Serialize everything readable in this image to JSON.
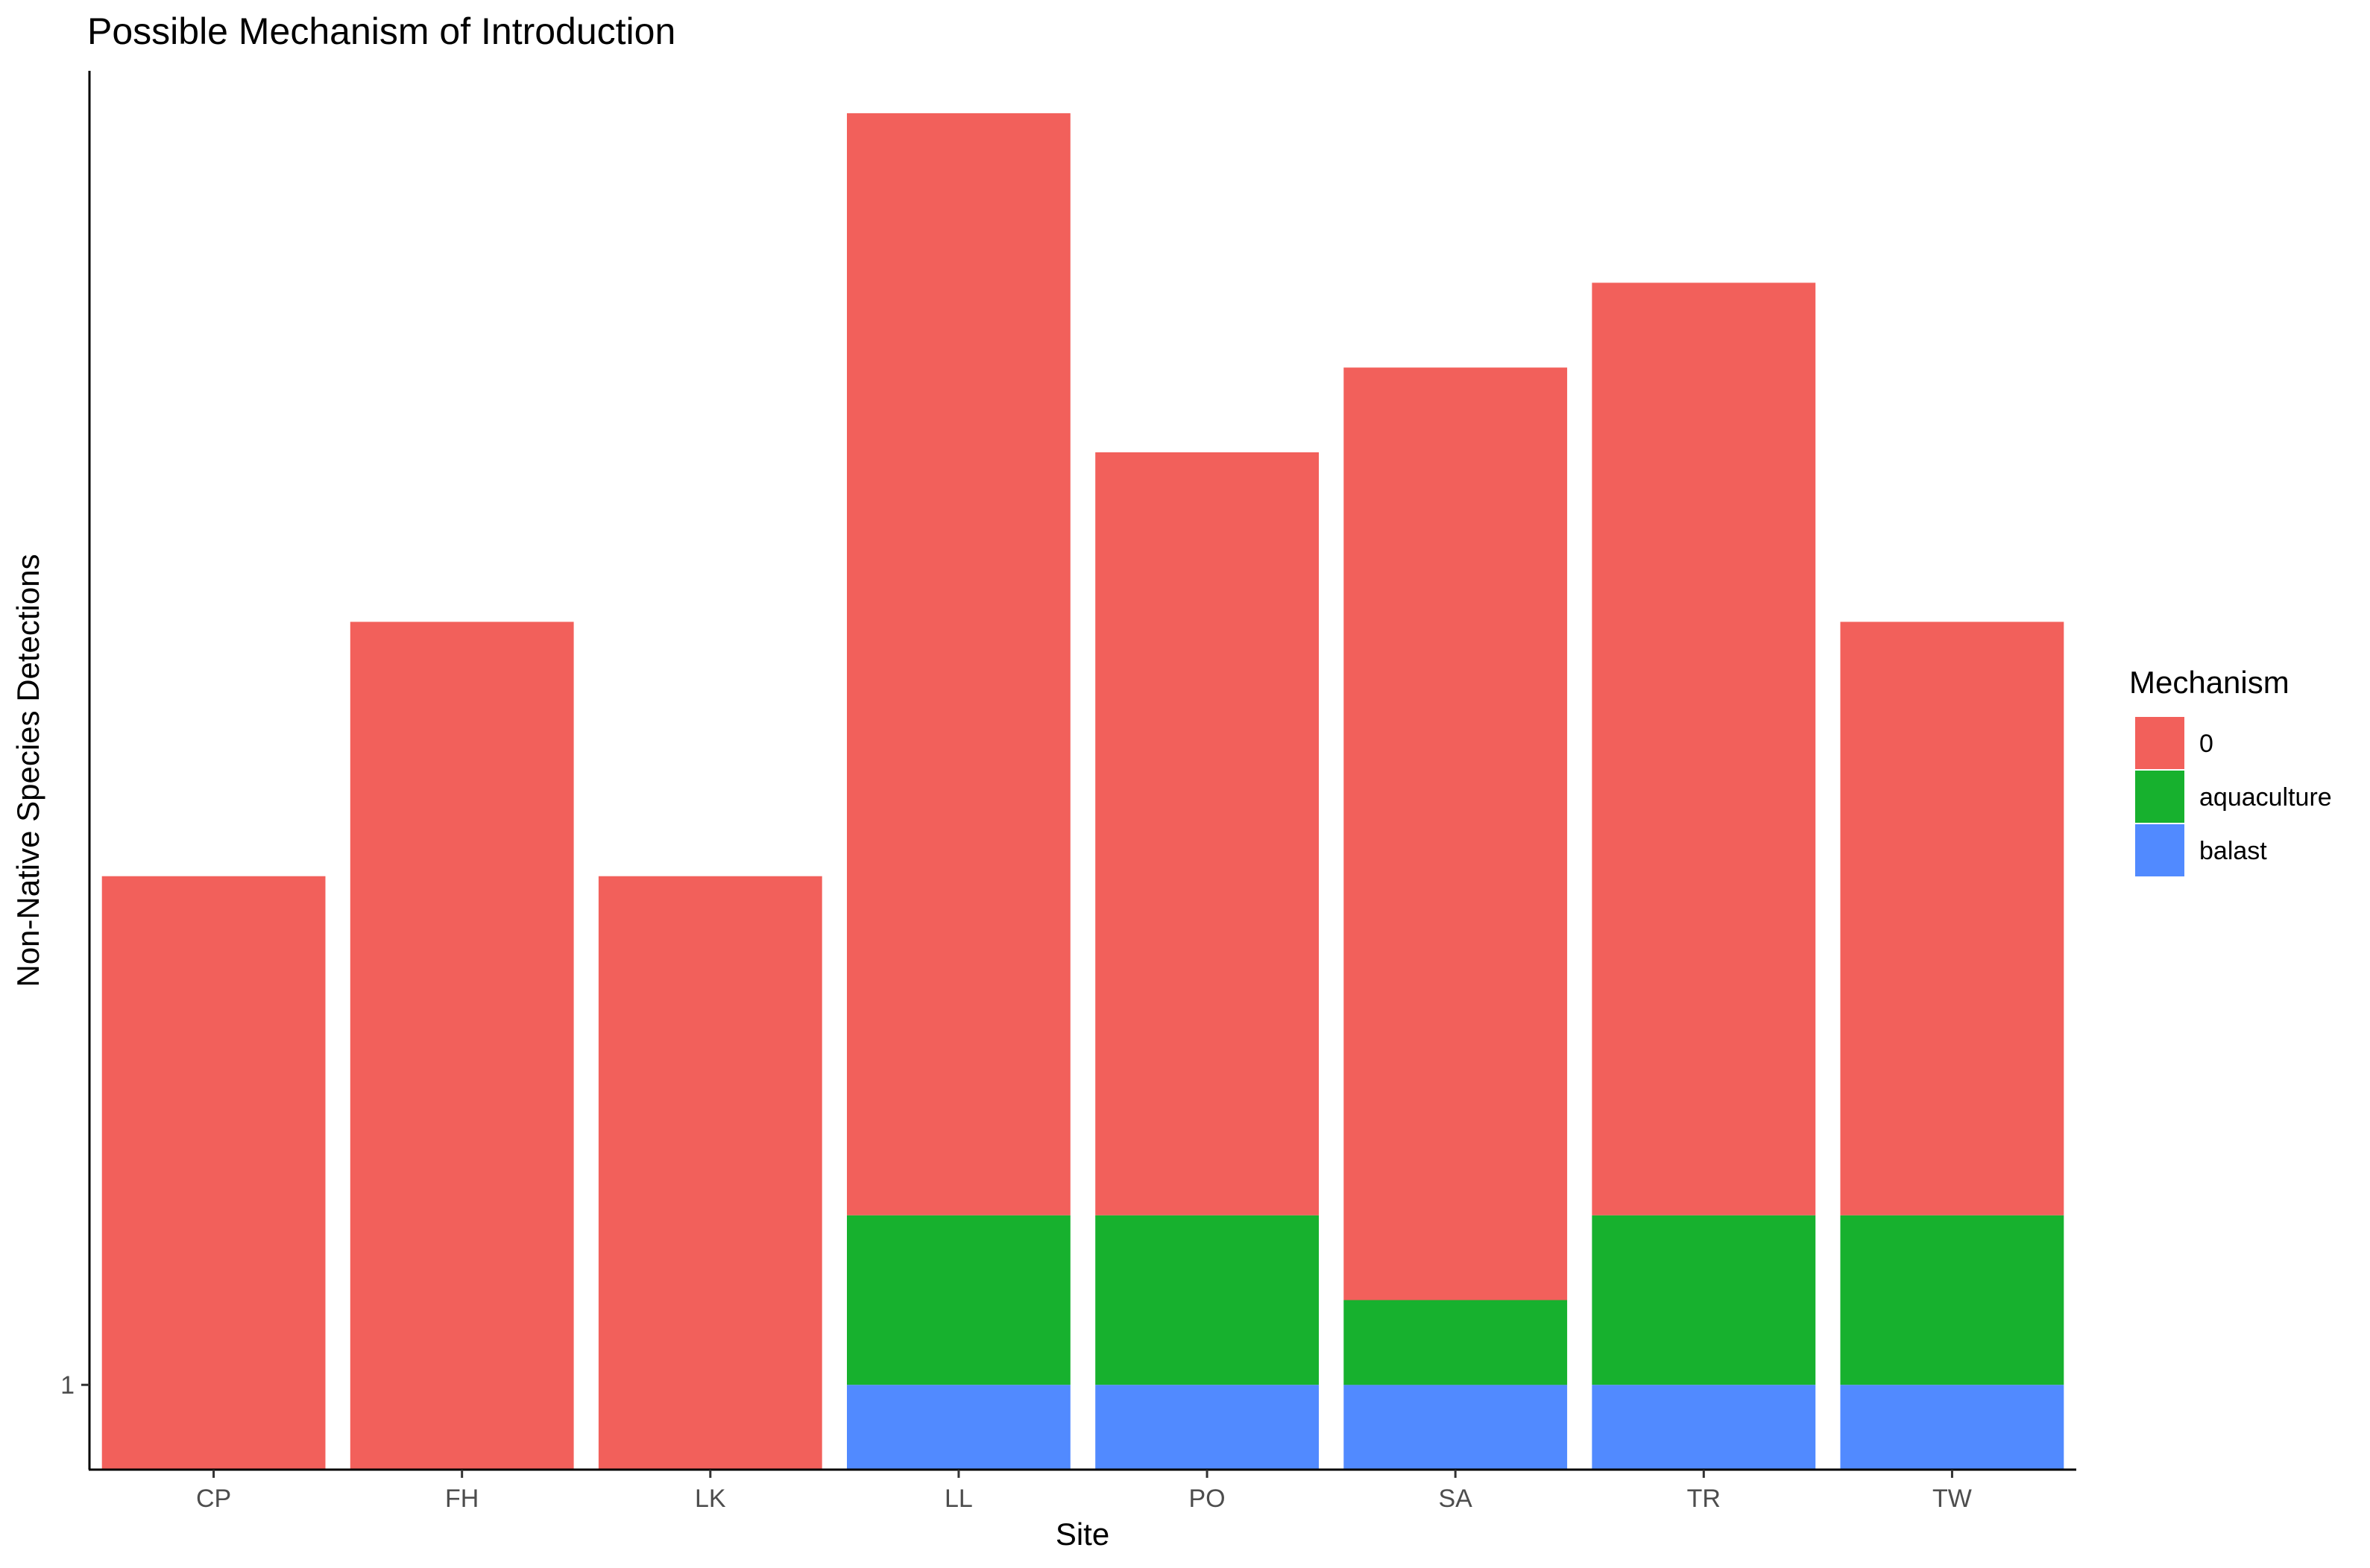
{
  "chart_data": {
    "type": "bar",
    "stacked": true,
    "title": "Possible Mechanism of Introduction",
    "xlabel": "Site",
    "ylabel": "Non-Native Species Detections",
    "categories": [
      "CP",
      "FH",
      "LK",
      "LL",
      "PO",
      "SA",
      "TR",
      "TW"
    ],
    "y_ticks": [
      1
    ],
    "ylim": [
      0,
      16.5
    ],
    "grid": false,
    "legend": {
      "title": "Mechanism",
      "placement": "right"
    },
    "series": [
      {
        "name": "balast",
        "color": "#518AFF",
        "values": [
          0,
          0,
          0,
          1,
          1,
          1,
          1,
          1
        ]
      },
      {
        "name": "aquaculture",
        "color": "#17B12E",
        "values": [
          0,
          0,
          0,
          2,
          2,
          1,
          2,
          2
        ]
      },
      {
        "name": "0",
        "color": "#F2605B",
        "values": [
          7,
          10,
          7,
          13,
          9,
          11,
          11,
          7
        ]
      }
    ],
    "legend_order": [
      "0",
      "aquaculture",
      "balast"
    ]
  }
}
